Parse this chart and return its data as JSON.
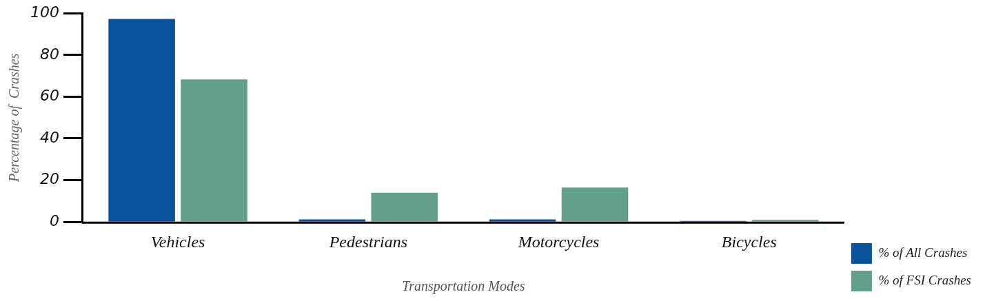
{
  "chart_data": {
    "type": "bar",
    "xlabel": "Transportation Modes",
    "ylabel": "Percentage of  Crashes",
    "categories": [
      "Vehicles",
      "Pedestrians",
      "Motorcycles",
      "Bicycles"
    ],
    "series": [
      {
        "name": "% of All Crashes",
        "color": "#08539b",
        "values": [
          97.3,
          1.2,
          1.2,
          0.5
        ]
      },
      {
        "name": "% of FSI Crashes",
        "color": "#62a08b",
        "values": [
          68.3,
          14.0,
          16.5,
          1.0
        ]
      }
    ],
    "ylim": [
      0,
      100
    ],
    "yticks": [
      0,
      20,
      40,
      60,
      80,
      100
    ],
    "grid": false,
    "legend": "bottom right"
  }
}
